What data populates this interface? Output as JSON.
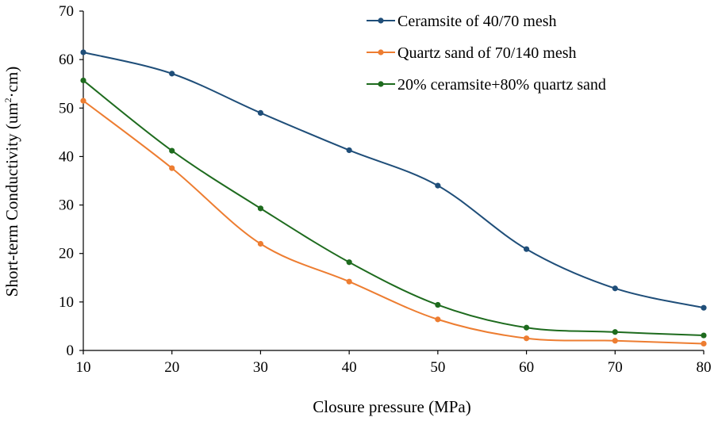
{
  "chart_data": {
    "type": "line",
    "title": "",
    "xlabel": "Closure pressure (MPa)",
    "ylabel_parts": [
      "Short-term Conductivity (um",
      "2",
      "·cm)"
    ],
    "x": [
      10,
      20,
      30,
      40,
      50,
      60,
      70,
      80
    ],
    "xlim": [
      10,
      80
    ],
    "ylim": [
      0,
      70
    ],
    "xticks": [
      "10",
      "20",
      "30",
      "40",
      "50",
      "60",
      "70",
      "80"
    ],
    "yticks": [
      "0",
      "10",
      "20",
      "30",
      "40",
      "50",
      "60",
      "70"
    ],
    "grid": false,
    "legend_position": "top-right",
    "series": [
      {
        "name": "Ceramsite of 40/70 mesh",
        "color": "#1f4e79",
        "values": [
          61.5,
          57.1,
          49.0,
          41.3,
          34.0,
          20.9,
          12.8,
          8.8
        ]
      },
      {
        "name": "Quartz sand of 70/140 mesh",
        "color": "#ed7d31",
        "values": [
          51.5,
          37.6,
          22.0,
          14.2,
          6.4,
          2.5,
          2.0,
          1.4
        ]
      },
      {
        "name": "20% ceramsite+80% quartz sand",
        "color": "#1e6b1e",
        "values": [
          55.7,
          41.2,
          29.3,
          18.2,
          9.4,
          4.7,
          3.8,
          3.1
        ]
      }
    ]
  }
}
